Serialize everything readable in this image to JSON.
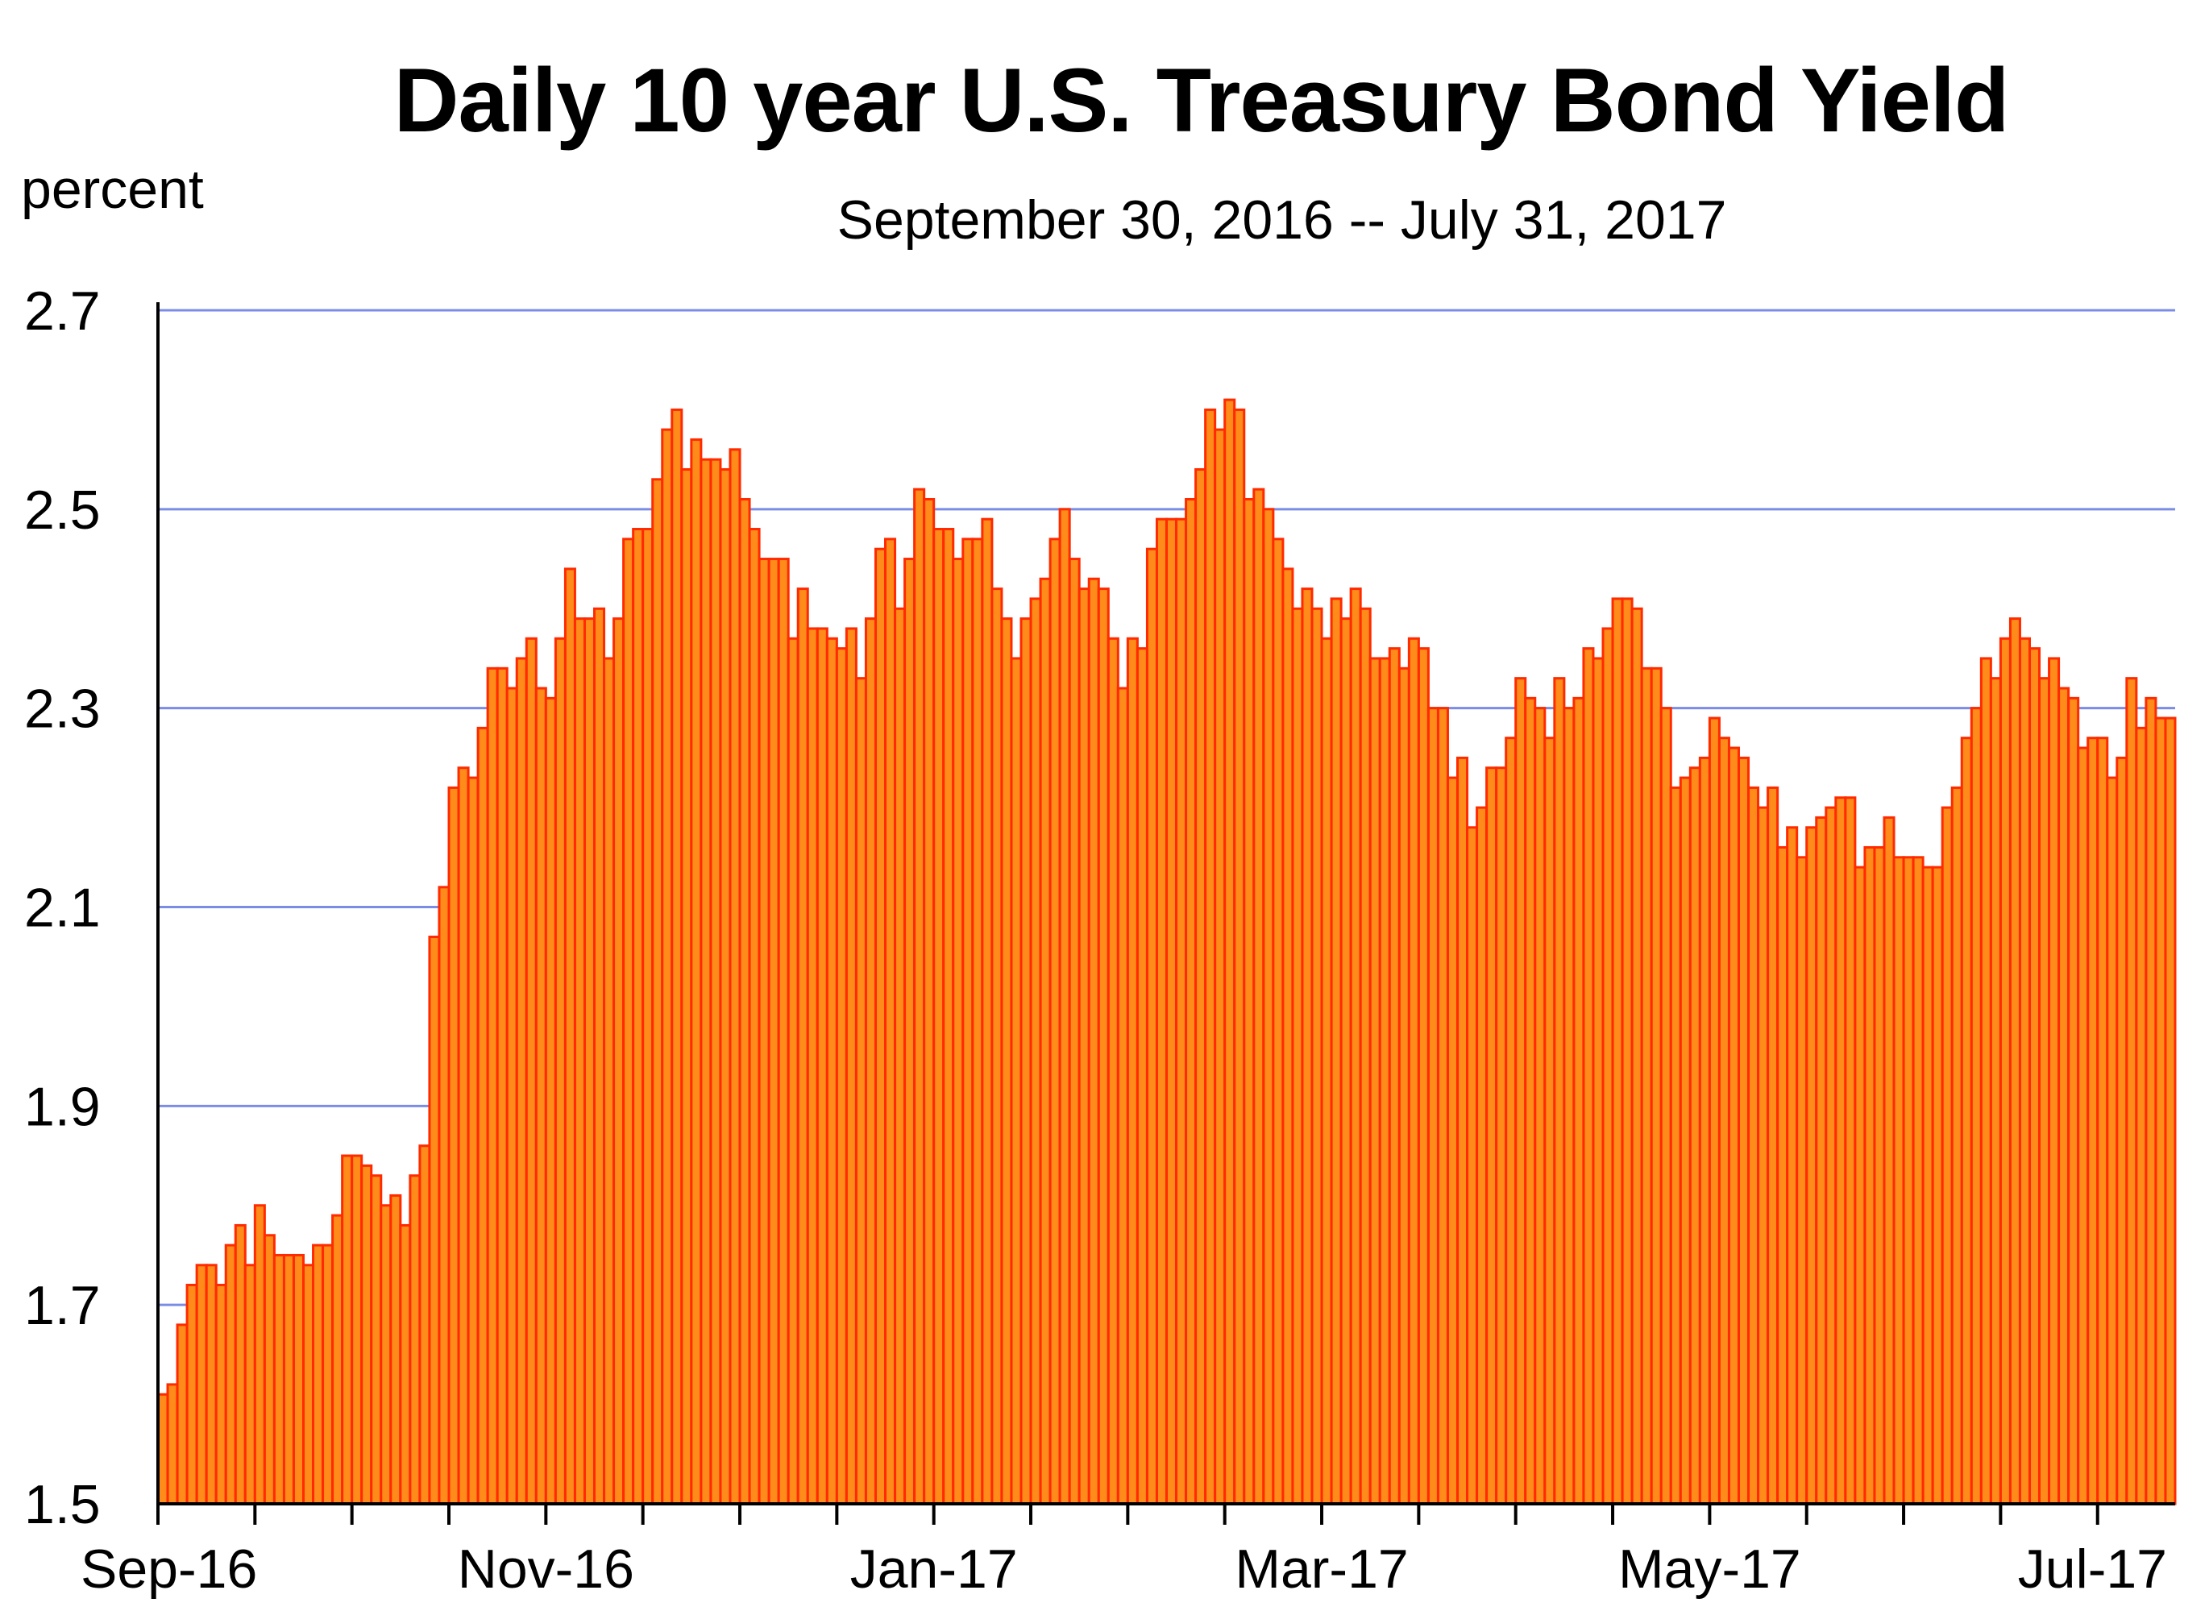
{
  "chart_data": {
    "type": "bar",
    "title": "Daily 10 year U.S. Treasury Bond Yield",
    "subtitle": "September 30, 2016 -- July 31, 2017",
    "ylabel": "percent",
    "xlabel": "",
    "ylim": [
      1.5,
      2.7
    ],
    "yticks": [
      "1.5",
      "1.7",
      "1.9",
      "2.1",
      "2.3",
      "2.5",
      "2.7"
    ],
    "ytick_values": [
      1.5,
      1.7,
      1.9,
      2.1,
      2.3,
      2.5,
      2.7
    ],
    "xtick_labels": [
      {
        "label": "Sep-16",
        "index": 0
      },
      {
        "label": "Nov-16",
        "index": 40
      },
      {
        "label": "Jan-17",
        "index": 80
      },
      {
        "label": "Mar-17",
        "index": 120
      },
      {
        "label": "May-17",
        "index": 160
      },
      {
        "label": "Jul-17",
        "index": 200
      }
    ],
    "grid": true,
    "colors": {
      "bar_fill": "#FF8C1A",
      "bar_edge": "#FF2A00",
      "grid": "#7B8CE6",
      "axis": "#000000"
    },
    "values": [
      1.61,
      1.62,
      1.68,
      1.72,
      1.74,
      1.74,
      1.72,
      1.76,
      1.78,
      1.74,
      1.8,
      1.77,
      1.75,
      1.75,
      1.75,
      1.74,
      1.76,
      1.76,
      1.79,
      1.85,
      1.85,
      1.84,
      1.83,
      1.8,
      1.81,
      1.78,
      1.83,
      1.86,
      2.07,
      2.12,
      2.22,
      2.24,
      2.23,
      2.28,
      2.34,
      2.34,
      2.32,
      2.35,
      2.37,
      2.32,
      2.31,
      2.37,
      2.44,
      2.39,
      2.39,
      2.4,
      2.35,
      2.39,
      2.47,
      2.48,
      2.48,
      2.53,
      2.58,
      2.6,
      2.54,
      2.57,
      2.55,
      2.55,
      2.54,
      2.56,
      2.51,
      2.48,
      2.45,
      2.45,
      2.45,
      2.37,
      2.42,
      2.38,
      2.38,
      2.37,
      2.36,
      2.38,
      2.33,
      2.39,
      2.46,
      2.47,
      2.4,
      2.45,
      2.52,
      2.51,
      2.48,
      2.48,
      2.45,
      2.47,
      2.47,
      2.49,
      2.42,
      2.39,
      2.35,
      2.39,
      2.41,
      2.43,
      2.47,
      2.5,
      2.45,
      2.42,
      2.43,
      2.42,
      2.37,
      2.32,
      2.37,
      2.36,
      2.46,
      2.49,
      2.49,
      2.49,
      2.51,
      2.54,
      2.6,
      2.58,
      2.61,
      2.6,
      2.51,
      2.52,
      2.5,
      2.47,
      2.44,
      2.4,
      2.42,
      2.4,
      2.37,
      2.41,
      2.39,
      2.42,
      2.4,
      2.35,
      2.35,
      2.36,
      2.34,
      2.37,
      2.36,
      2.3,
      2.3,
      2.23,
      2.25,
      2.18,
      2.2,
      2.24,
      2.24,
      2.27,
      2.33,
      2.31,
      2.3,
      2.27,
      2.33,
      2.3,
      2.31,
      2.36,
      2.35,
      2.38,
      2.41,
      2.41,
      2.4,
      2.34,
      2.34,
      2.3,
      2.22,
      2.23,
      2.24,
      2.25,
      2.29,
      2.27,
      2.26,
      2.25,
      2.22,
      2.2,
      2.22,
      2.16,
      2.18,
      2.15,
      2.18,
      2.19,
      2.2,
      2.21,
      2.21,
      2.14,
      2.16,
      2.16,
      2.19,
      2.15,
      2.15,
      2.15,
      2.14,
      2.14,
      2.2,
      2.22,
      2.27,
      2.3,
      2.35,
      2.33,
      2.37,
      2.39,
      2.37,
      2.36,
      2.33,
      2.35,
      2.32,
      2.31,
      2.26,
      2.27,
      2.27,
      2.23,
      2.25,
      2.33,
      2.28,
      2.31,
      2.29,
      2.29
    ]
  }
}
